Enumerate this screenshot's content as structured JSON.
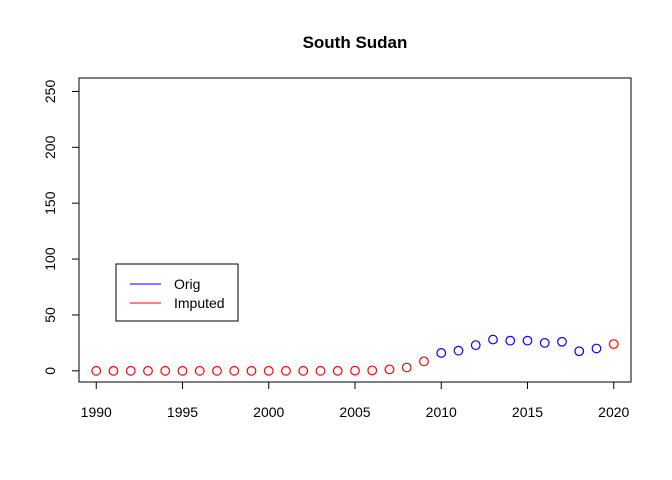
{
  "chart_data": {
    "type": "scatter",
    "title": "South Sudan",
    "xlabel": "",
    "ylabel": "",
    "xlim": [
      1989,
      2021
    ],
    "ylim": [
      -10,
      262
    ],
    "x_ticks": [
      1990,
      1995,
      2000,
      2005,
      2010,
      2015,
      2020
    ],
    "y_ticks": [
      0,
      50,
      100,
      150,
      200,
      250
    ],
    "legend_position": "left",
    "series": [
      {
        "name": "Orig",
        "color": "#0000ff",
        "x": [
          2010,
          2011,
          2012,
          2013,
          2014,
          2015,
          2016,
          2017,
          2018,
          2019
        ],
        "y": [
          16,
          18,
          23,
          28,
          27,
          27,
          25,
          26,
          17.5,
          20
        ]
      },
      {
        "name": "Imputed",
        "color": "#ff0000",
        "x": [
          1990,
          1991,
          1992,
          1993,
          1994,
          1995,
          1996,
          1997,
          1998,
          1999,
          2000,
          2001,
          2002,
          2003,
          2004,
          2005,
          2006,
          2007,
          2008,
          2009,
          2020
        ],
        "y": [
          0,
          0,
          0,
          0,
          0,
          0,
          0,
          0,
          0,
          0,
          0,
          0,
          0,
          0,
          0,
          0.2,
          0.4,
          1.3,
          3,
          8.5,
          24
        ]
      }
    ]
  }
}
